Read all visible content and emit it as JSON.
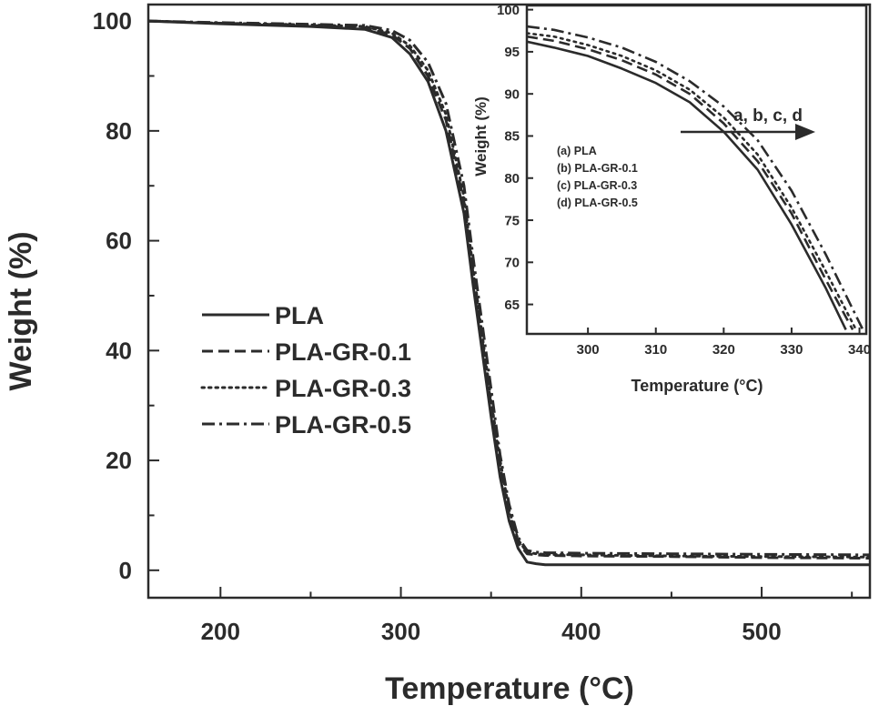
{
  "chart_data": [
    {
      "type": "line",
      "xlabel": "Temperature (°C)",
      "ylabel": "Weight (%)",
      "xlim": [
        160,
        560
      ],
      "ylim": [
        -5,
        103
      ],
      "xticks": [
        200,
        300,
        400,
        500
      ],
      "yticks": [
        0,
        20,
        40,
        60,
        80,
        100
      ],
      "grid": false,
      "legend_position": "center-left",
      "series": [
        {
          "name": "PLA",
          "style": "solid",
          "x": [
            160,
            200,
            250,
            280,
            295,
            305,
            315,
            325,
            335,
            340,
            345,
            350,
            355,
            360,
            365,
            370,
            375,
            380,
            400,
            450,
            500,
            560
          ],
          "y": [
            100,
            99.5,
            99,
            98.5,
            97,
            94,
            89,
            80,
            65,
            52,
            40,
            28,
            17,
            9,
            4,
            1.5,
            1.2,
            1,
            1,
            1,
            1,
            1
          ]
        },
        {
          "name": "PLA-GR-0.1",
          "style": "dashed",
          "x": [
            160,
            200,
            250,
            280,
            295,
            305,
            315,
            325,
            335,
            340,
            345,
            350,
            355,
            360,
            365,
            370,
            375,
            380,
            400,
            450,
            500,
            560
          ],
          "y": [
            100,
            99.6,
            99.2,
            98.8,
            97.5,
            95,
            90,
            82,
            67,
            54,
            42,
            30,
            19,
            10,
            5,
            3,
            2.8,
            2.7,
            2.6,
            2.5,
            2.3,
            2.2
          ]
        },
        {
          "name": "PLA-GR-0.3",
          "style": "dotted",
          "x": [
            160,
            200,
            250,
            280,
            295,
            305,
            315,
            325,
            335,
            340,
            345,
            350,
            355,
            360,
            365,
            370,
            375,
            380,
            400,
            450,
            500,
            560
          ],
          "y": [
            100,
            99.6,
            99.3,
            99,
            97.8,
            95.5,
            91,
            83,
            68,
            55,
            43,
            31,
            20,
            11,
            5.5,
            3.3,
            3,
            2.9,
            2.8,
            2.6,
            2.5,
            2.4
          ]
        },
        {
          "name": "PLA-GR-0.5",
          "style": "dashdot",
          "x": [
            160,
            200,
            250,
            280,
            295,
            305,
            315,
            325,
            335,
            340,
            345,
            350,
            355,
            360,
            365,
            370,
            375,
            380,
            400,
            450,
            500,
            560
          ],
          "y": [
            100,
            99.7,
            99.4,
            99.2,
            98.3,
            96.5,
            92.5,
            85,
            70,
            57,
            45,
            33,
            21,
            12,
            6,
            3.6,
            3.3,
            3.2,
            3.1,
            3,
            2.9,
            2.8
          ]
        }
      ]
    },
    {
      "type": "line",
      "xlabel": "Temperature (°C)",
      "ylabel": "Weight (%)",
      "xlim": [
        291,
        341
      ],
      "ylim": [
        61.5,
        100.5
      ],
      "xticks": [
        300,
        310,
        320,
        330,
        340
      ],
      "yticks": [
        65,
        70,
        75,
        80,
        85,
        90,
        95,
        100
      ],
      "grid": false,
      "legend_position": "center-left",
      "legend": [
        "(a) PLA",
        "(b) PLA-GR-0.1",
        "(c) PLA-GR-0.3",
        "(d) PLA-GR-0.5"
      ],
      "annotation": "a, b, c, d",
      "series": [
        {
          "name": "(a) PLA",
          "style": "solid",
          "x": [
            291,
            295,
            300,
            305,
            310,
            315,
            320,
            325,
            330,
            335,
            338
          ],
          "y": [
            96.2,
            95.5,
            94.5,
            93,
            91.3,
            89,
            85.5,
            81,
            74.5,
            67,
            62
          ]
        },
        {
          "name": "(b) PLA-GR-0.1",
          "style": "dashed",
          "x": [
            291,
            295,
            300,
            305,
            310,
            315,
            320,
            325,
            330,
            335,
            339
          ],
          "y": [
            96.8,
            96.3,
            95.3,
            94,
            92.3,
            90,
            86.5,
            82,
            75.8,
            68,
            62
          ]
        },
        {
          "name": "(c) PLA-GR-0.3",
          "style": "dotted",
          "x": [
            291,
            295,
            300,
            305,
            310,
            315,
            320,
            325,
            330,
            335,
            339.5
          ],
          "y": [
            97.2,
            96.8,
            95.8,
            94.5,
            92.8,
            90.5,
            87.2,
            82.8,
            76.5,
            69,
            62
          ]
        },
        {
          "name": "(d) PLA-GR-0.5",
          "style": "dashdot",
          "x": [
            291,
            295,
            300,
            305,
            310,
            315,
            320,
            325,
            330,
            335,
            340.5
          ],
          "y": [
            98,
            97.6,
            96.7,
            95.5,
            93.8,
            91.5,
            88.5,
            84.5,
            78.5,
            71,
            62
          ]
        }
      ]
    }
  ]
}
